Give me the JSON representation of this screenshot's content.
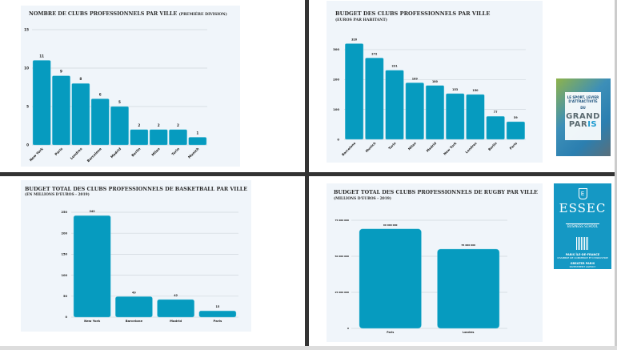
{
  "colors": {
    "bar": "#069bbf",
    "panel": "#f0f5fa",
    "grid": "#cfd6dc",
    "separator": "#333333"
  },
  "chart_data": [
    {
      "id": "clubs",
      "type": "bar",
      "title": "NOMBRE DE CLUBS PROFESSIONNELS PAR VILLE",
      "title_suffix": "(PREMIÈRE DIVISION)",
      "subtitle": "",
      "categories": [
        "New York",
        "Paris",
        "Londres",
        "Barcelone",
        "Madrid",
        "Berlin",
        "Milan",
        "Turin",
        "Munich"
      ],
      "values": [
        11,
        9,
        8,
        6,
        5,
        2,
        2,
        2,
        1
      ],
      "value_labels": [
        "11",
        "9",
        "8",
        "6",
        "5",
        "2",
        "2",
        "2",
        "1"
      ],
      "yticks": [
        "0",
        "5",
        "10",
        "15"
      ],
      "ytick_values": [
        0,
        5,
        10,
        15
      ],
      "ylim": [
        0,
        15
      ],
      "xlabel": "",
      "ylabel": "",
      "grid": true,
      "rotated_labels": true
    },
    {
      "id": "budget_habitant",
      "type": "bar",
      "title": "BUDGET DES CLUBS PROFESSIONNELS PAR VILLE",
      "title_suffix": "",
      "subtitle": "(EUROS PAR HABITANT)",
      "categories": [
        "Barcelone",
        "Munich",
        "Turin",
        "Milan",
        "Madrid",
        "New York",
        "Londres",
        "Berlin",
        "Paris"
      ],
      "values": [
        320,
        272,
        231,
        189,
        180,
        153,
        150,
        77,
        59
      ],
      "value_labels": [
        "320",
        "272",
        "231",
        "189",
        "180",
        "153",
        "150",
        "77",
        "59"
      ],
      "yticks": [
        "0",
        "100",
        "200",
        "300"
      ],
      "ytick_values": [
        0,
        100,
        200,
        300
      ],
      "ylim": [
        0,
        340
      ],
      "xlabel": "",
      "ylabel": "",
      "grid": true,
      "rotated_labels": true
    },
    {
      "id": "basketball",
      "type": "bar",
      "title": "BUDGET TOTAL DES CLUBS PROFESSIONNELS DE BASKETBALL PAR VILLE",
      "title_suffix": "",
      "subtitle": "(EN MILLIONS D'EUROS - 2019)",
      "categories": [
        "New York",
        "Barcelone",
        "Madrid",
        "Paris"
      ],
      "values": [
        242,
        49,
        42,
        15
      ],
      "value_labels": [
        "242",
        "49",
        "42",
        "15"
      ],
      "yticks": [
        "0",
        "50",
        "100",
        "150",
        "200",
        "250"
      ],
      "ytick_values": [
        0,
        50,
        100,
        150,
        200,
        250
      ],
      "ylim": [
        0,
        250
      ],
      "xlabel": "",
      "ylabel": "",
      "grid": true,
      "rotated_labels": false
    },
    {
      "id": "rugby",
      "type": "bar",
      "title": "BUDGET TOTAL DES CLUBS PROFESSIONNELS DE RUGBY PAR VILLE",
      "title_suffix": "",
      "subtitle": "(MILLIONS D'EUROS - 2019)",
      "categories": [
        "Paris",
        "Londres"
      ],
      "values": [
        69000000,
        55000000
      ],
      "value_labels": [
        "69 000 000",
        "55 000 000"
      ],
      "yticks": [
        "0",
        "25 000 000",
        "50 000 000",
        "75 000 000"
      ],
      "ytick_values": [
        0,
        25000000,
        50000000,
        75000000
      ],
      "ylim": [
        0,
        75000000
      ],
      "xlabel": "",
      "ylabel": "",
      "grid": true,
      "rotated_labels": false
    }
  ],
  "poster": {
    "line1": "LE SPORT, LEVIER",
    "line2": "D'ATTRACTIVITÉ",
    "line3": "DU",
    "grand": "GRAND",
    "paris_a": "PAR",
    "paris_b": "IS"
  },
  "essec": {
    "shield": "E",
    "name": "ESSEC",
    "school": "BUSINESS SCHOOL",
    "cci1": "PARIS ÎLE-DE-FRANCE",
    "cci2": "CHAMBRE DE COMMERCE ET D'INDUSTRIE",
    "gp1": "GREATER PARIS",
    "gp2": "INVESTMENT AGENCY"
  }
}
